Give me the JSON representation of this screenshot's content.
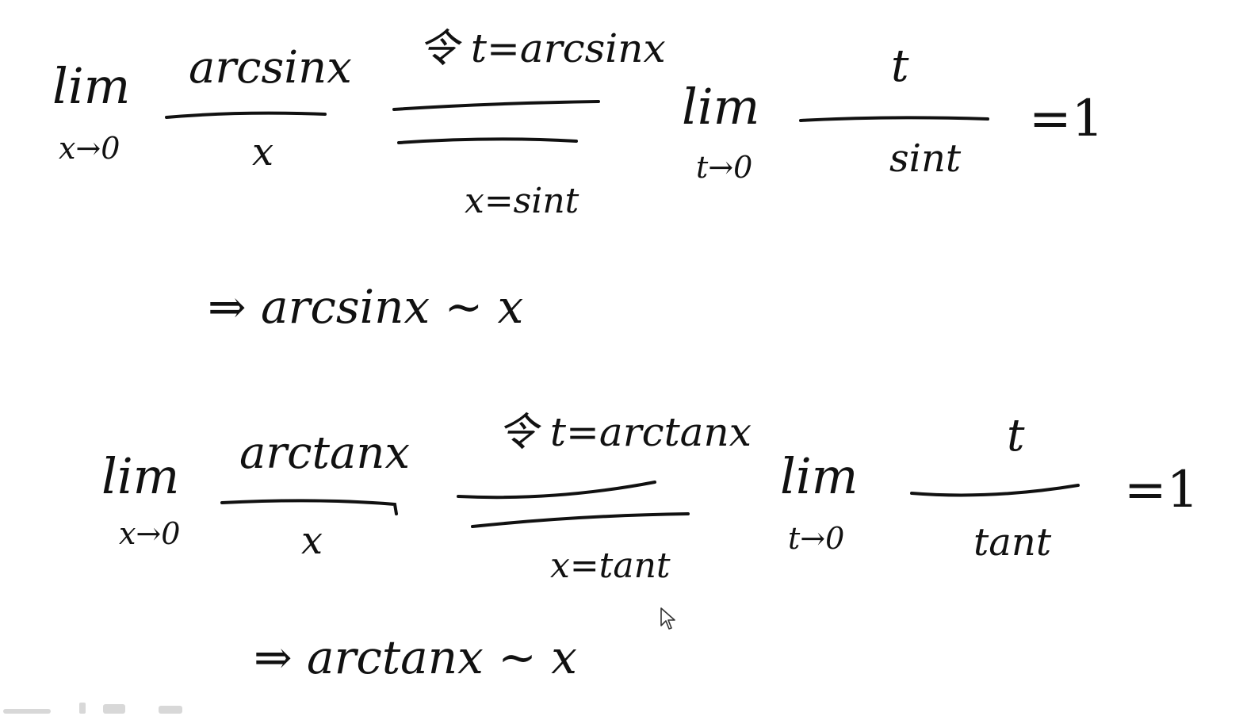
{
  "block1": {
    "lim_left": "lim",
    "sub_left": "x→0",
    "numerator": "arcsinx",
    "denominator": "x",
    "substitution_top": "令 t=arcsinx",
    "substitution_bottom": "x=sint",
    "lim_right": "lim",
    "sub_right": "t→0",
    "numerator_right": "t",
    "denominator_right": "sint",
    "result": "=1",
    "conclusion": "⇒ arcsinx ~ x"
  },
  "block2": {
    "lim_left": "lim",
    "sub_left": "x→0",
    "numerator": "arctanx",
    "denominator": "x",
    "substitution_top": "令 t=arctanx",
    "substitution_bottom": "x=tant",
    "lim_right": "lim",
    "sub_right": "t→0",
    "numerator_right": "t",
    "denominator_right": "tant",
    "result": "=1",
    "conclusion": "⇒ arctanx ~ x"
  },
  "colors": {
    "ink": "#111111",
    "background": "#ffffff"
  },
  "icons": {
    "pointer": "mouse-pointer-icon"
  }
}
